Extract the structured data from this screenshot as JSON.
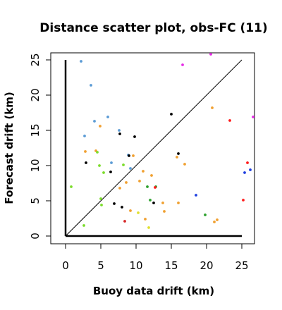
{
  "chart_data": {
    "type": "scatter",
    "title": "Distance scatter plot, obs-FC (11)",
    "xlabel": "Buoy data drift (km)",
    "ylabel": "Forecast drift (km)",
    "xlim": [
      -2.1,
      26.8
    ],
    "ylim": [
      -1.1,
      26.0
    ],
    "xticks": [
      0,
      5,
      10,
      15,
      20,
      25
    ],
    "yticks": [
      0,
      5,
      10,
      15,
      20,
      25
    ],
    "xtick_labels": [
      "0",
      "5",
      "10",
      "15",
      "20",
      "25"
    ],
    "ytick_labels": [
      "0",
      "5",
      "10",
      "15",
      "20",
      "25"
    ],
    "grid": false,
    "axis_lines": {
      "x": [
        0,
        25
      ],
      "y": [
        0,
        25
      ]
    },
    "reference_line": {
      "from": [
        0,
        0
      ],
      "to": [
        25,
        25
      ],
      "color": "#000000"
    },
    "points": [
      {
        "x": 2.2,
        "y": 24.8,
        "color": "#5b9bd5"
      },
      {
        "x": 3.6,
        "y": 21.4,
        "color": "#5b9bd5"
      },
      {
        "x": 4.1,
        "y": 16.3,
        "color": "#5b9bd5"
      },
      {
        "x": 6.0,
        "y": 16.9,
        "color": "#5b9bd5"
      },
      {
        "x": 2.7,
        "y": 14.2,
        "color": "#5b9bd5"
      },
      {
        "x": 7.6,
        "y": 15.0,
        "color": "#5b9bd5"
      },
      {
        "x": 6.5,
        "y": 10.4,
        "color": "#5b9bd5"
      },
      {
        "x": 8.9,
        "y": 11.5,
        "color": "#5b9bd5"
      },
      {
        "x": 9.2,
        "y": 9.6,
        "color": "#5b9bd5"
      },
      {
        "x": 4.9,
        "y": 15.6,
        "color": "#f0a030"
      },
      {
        "x": 2.8,
        "y": 12.0,
        "color": "#f0a030"
      },
      {
        "x": 4.3,
        "y": 12.1,
        "color": "#f0a030"
      },
      {
        "x": 9.6,
        "y": 11.4,
        "color": "#f0a030"
      },
      {
        "x": 11.0,
        "y": 9.2,
        "color": "#f0a030"
      },
      {
        "x": 12.2,
        "y": 8.6,
        "color": "#f0a030"
      },
      {
        "x": 10.5,
        "y": 7.8,
        "color": "#f0a030"
      },
      {
        "x": 8.6,
        "y": 7.6,
        "color": "#f0a030"
      },
      {
        "x": 7.7,
        "y": 6.8,
        "color": "#f0a030"
      },
      {
        "x": 13.8,
        "y": 4.7,
        "color": "#f0a030"
      },
      {
        "x": 14.0,
        "y": 3.5,
        "color": "#f0a030"
      },
      {
        "x": 15.8,
        "y": 11.2,
        "color": "#f0a030"
      },
      {
        "x": 16.9,
        "y": 10.2,
        "color": "#f0a030"
      },
      {
        "x": 16.0,
        "y": 4.7,
        "color": "#f0a030"
      },
      {
        "x": 20.8,
        "y": 18.2,
        "color": "#f0a030"
      },
      {
        "x": 21.5,
        "y": 2.3,
        "color": "#f0a030"
      },
      {
        "x": 21.1,
        "y": 2.0,
        "color": "#f0a030"
      },
      {
        "x": 9.2,
        "y": 3.6,
        "color": "#f0a030"
      },
      {
        "x": 11.3,
        "y": 2.4,
        "color": "#f0a030"
      },
      {
        "x": 10.3,
        "y": 3.3,
        "color": "#e0e030"
      },
      {
        "x": 11.8,
        "y": 1.2,
        "color": "#e0e030"
      },
      {
        "x": 4.5,
        "y": 11.9,
        "color": "#7cdc2c"
      },
      {
        "x": 4.8,
        "y": 10.0,
        "color": "#7cdc2c"
      },
      {
        "x": 5.4,
        "y": 9.0,
        "color": "#7cdc2c"
      },
      {
        "x": 0.8,
        "y": 7.0,
        "color": "#7cdc2c"
      },
      {
        "x": 5.0,
        "y": 5.3,
        "color": "#7cdc2c"
      },
      {
        "x": 5.1,
        "y": 4.4,
        "color": "#7cdc2c"
      },
      {
        "x": 8.2,
        "y": 10.1,
        "color": "#7cdc2c"
      },
      {
        "x": 2.6,
        "y": 1.5,
        "color": "#7cdc2c"
      },
      {
        "x": 12.0,
        "y": 5.1,
        "color": "#2ca02c"
      },
      {
        "x": 11.6,
        "y": 7.0,
        "color": "#2ca02c"
      },
      {
        "x": 19.8,
        "y": 3.0,
        "color": "#2ca02c"
      },
      {
        "x": 12.8,
        "y": 7.0,
        "color": "#2ca02c"
      },
      {
        "x": 2.9,
        "y": 10.4,
        "color": "#000000"
      },
      {
        "x": 6.4,
        "y": 9.1,
        "color": "#000000"
      },
      {
        "x": 7.7,
        "y": 14.5,
        "color": "#000000"
      },
      {
        "x": 9.8,
        "y": 14.1,
        "color": "#000000"
      },
      {
        "x": 9.0,
        "y": 11.4,
        "color": "#000000"
      },
      {
        "x": 15.0,
        "y": 17.3,
        "color": "#000000"
      },
      {
        "x": 16.0,
        "y": 11.7,
        "color": "#000000"
      },
      {
        "x": 12.5,
        "y": 4.7,
        "color": "#000000"
      },
      {
        "x": 6.9,
        "y": 4.6,
        "color": "#000000"
      },
      {
        "x": 8.0,
        "y": 4.1,
        "color": "#000000"
      },
      {
        "x": 8.4,
        "y": 2.1,
        "color": "#d62728"
      },
      {
        "x": 23.3,
        "y": 16.4,
        "color": "#ff1a1a"
      },
      {
        "x": 25.8,
        "y": 10.4,
        "color": "#ff1a1a"
      },
      {
        "x": 25.2,
        "y": 5.1,
        "color": "#ff1a1a"
      },
      {
        "x": 12.7,
        "y": 6.9,
        "color": "#ff1a1a"
      },
      {
        "x": 25.4,
        "y": 9.0,
        "color": "#1f3fe0"
      },
      {
        "x": 26.2,
        "y": 9.4,
        "color": "#1f3fe0"
      },
      {
        "x": 18.5,
        "y": 5.8,
        "color": "#1f3fe0"
      },
      {
        "x": 16.6,
        "y": 24.3,
        "color": "#e62ee6"
      },
      {
        "x": 20.6,
        "y": 25.8,
        "color": "#e62ee6"
      },
      {
        "x": 26.6,
        "y": 16.9,
        "color": "#e62ee6"
      }
    ]
  }
}
